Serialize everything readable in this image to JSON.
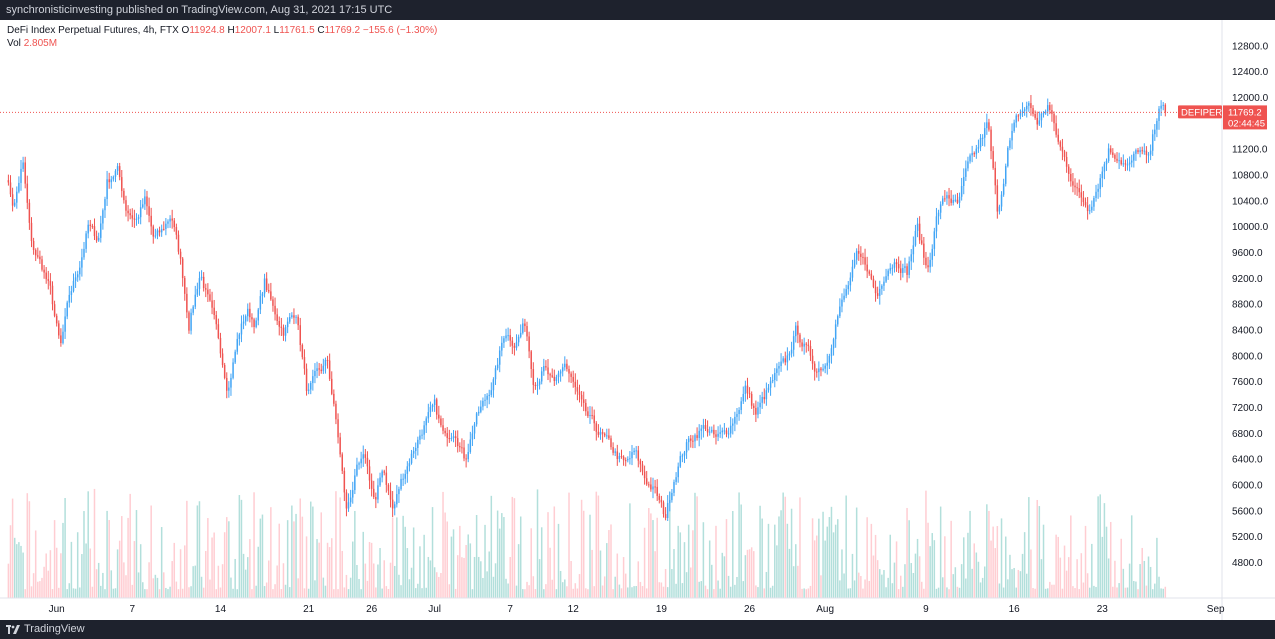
{
  "header": {
    "text": "synchronisticinvesting published on TradingView.com, Aug 31, 2021 17:15 UTC"
  },
  "footer": {
    "brand": "TradingView",
    "logo_icon": "tradingview-logo-icon"
  },
  "legend": {
    "symbol": "DeFi Index Perpetual Futures, 4h, FTX",
    "open_label": "O",
    "open": "11924.8",
    "high_label": "H",
    "high": "12007.1",
    "low_label": "L",
    "low": "11761.5",
    "close_label": "C",
    "close": "11769.2",
    "change": "−155.6 (−1.30%)",
    "vol_label": "Vol",
    "vol": "2.805M"
  },
  "price_tag": {
    "ticker": "DEFIPERP",
    "price": "11769.2",
    "countdown": "02:44:45"
  },
  "colors": {
    "up": "#42a5f5",
    "down": "#ef5350",
    "up_volume": "#b2dfdb",
    "down_volume": "#ffcdd2",
    "price_line": "#ef5350"
  },
  "chart_data": {
    "type": "candlestick",
    "y_ticks": [
      "12800.0",
      "12400.0",
      "12000.0",
      "11600.0",
      "11200.0",
      "10800.0",
      "10400.0",
      "10000.0",
      "9600.0",
      "9200.0",
      "8800.0",
      "8400.0",
      "8000.0",
      "7600.0",
      "7200.0",
      "6800.0",
      "6400.0",
      "6000.0",
      "5600.0",
      "5200.0",
      "4800.0"
    ],
    "y_tick_values": [
      12800,
      12400,
      12000,
      11600,
      11200,
      10800,
      10400,
      10000,
      9600,
      9200,
      8800,
      8400,
      8000,
      7600,
      7200,
      6800,
      6400,
      6000,
      5600,
      5200,
      4800
    ],
    "ylim": [
      4250,
      13200
    ],
    "x_ticks": [
      {
        "label": "Jun",
        "day": 31
      },
      {
        "label": "7",
        "day": 37
      },
      {
        "label": "14",
        "day": 44
      },
      {
        "label": "21",
        "day": 51
      },
      {
        "label": "26",
        "day": 56
      },
      {
        "label": "Jul",
        "day": 61
      },
      {
        "label": "7",
        "day": 67
      },
      {
        "label": "12",
        "day": 72
      },
      {
        "label": "19",
        "day": 79
      },
      {
        "label": "26",
        "day": 86
      },
      {
        "label": "Aug",
        "day": 92
      },
      {
        "label": "9",
        "day": 100
      },
      {
        "label": "16",
        "day": 107
      },
      {
        "label": "23",
        "day": 114
      },
      {
        "label": "Sep",
        "day": 123
      }
    ],
    "xlim": [
      26.5,
      123.5
    ],
    "path_points": [
      [
        27.0,
        10800
      ],
      [
        27.6,
        10300
      ],
      [
        28.3,
        11000
      ],
      [
        29.0,
        9700
      ],
      [
        29.8,
        9400
      ],
      [
        30.5,
        9000
      ],
      [
        31.3,
        8100
      ],
      [
        32.0,
        8900
      ],
      [
        32.8,
        9400
      ],
      [
        33.5,
        10000
      ],
      [
        34.3,
        9800
      ],
      [
        35.0,
        10700
      ],
      [
        35.8,
        10900
      ],
      [
        36.5,
        10300
      ],
      [
        37.3,
        10100
      ],
      [
        38.0,
        10400
      ],
      [
        38.7,
        9800
      ],
      [
        39.3,
        9900
      ],
      [
        40.1,
        10200
      ],
      [
        40.9,
        9400
      ],
      [
        41.5,
        8500
      ],
      [
        42.4,
        9300
      ],
      [
        43.1,
        8800
      ],
      [
        43.9,
        8200
      ],
      [
        44.6,
        7500
      ],
      [
        45.4,
        8300
      ],
      [
        46.1,
        8700
      ],
      [
        46.8,
        8500
      ],
      [
        47.5,
        9150
      ],
      [
        48.2,
        8700
      ],
      [
        49.0,
        8400
      ],
      [
        50.0,
        8700
      ],
      [
        50.9,
        7400
      ],
      [
        51.7,
        7700
      ],
      [
        52.5,
        7900
      ],
      [
        53.3,
        6800
      ],
      [
        54.0,
        5600
      ],
      [
        54.8,
        6200
      ],
      [
        55.5,
        6400
      ],
      [
        56.3,
        5700
      ],
      [
        56.9,
        6300
      ],
      [
        57.7,
        5600
      ],
      [
        58.4,
        6100
      ],
      [
        59.2,
        6500
      ],
      [
        60.1,
        6900
      ],
      [
        61.0,
        7200
      ],
      [
        61.8,
        6700
      ],
      [
        62.6,
        6900
      ],
      [
        63.4,
        6400
      ],
      [
        64.2,
        7000
      ],
      [
        65.0,
        7300
      ],
      [
        65.8,
        7700
      ],
      [
        66.6,
        8400
      ],
      [
        67.4,
        8200
      ],
      [
        68.2,
        8500
      ],
      [
        68.9,
        7600
      ],
      [
        69.7,
        7800
      ],
      [
        70.5,
        7500
      ],
      [
        71.3,
        7900
      ],
      [
        72.1,
        7500
      ],
      [
        72.9,
        7100
      ],
      [
        73.7,
        6900
      ],
      [
        74.5,
        6700
      ],
      [
        75.3,
        6500
      ],
      [
        76.1,
        6300
      ],
      [
        76.9,
        6500
      ],
      [
        77.7,
        6100
      ],
      [
        78.5,
        5900
      ],
      [
        79.3,
        5500
      ],
      [
        80.1,
        6200
      ],
      [
        80.9,
        6600
      ],
      [
        81.7,
        6800
      ],
      [
        82.5,
        6900
      ],
      [
        83.3,
        6700
      ],
      [
        84.1,
        6800
      ],
      [
        84.9,
        7100
      ],
      [
        85.7,
        7500
      ],
      [
        86.5,
        7100
      ],
      [
        87.3,
        7400
      ],
      [
        88.1,
        7700
      ],
      [
        88.9,
        7900
      ],
      [
        89.7,
        8400
      ],
      [
        90.5,
        8100
      ],
      [
        91.3,
        7800
      ],
      [
        92.1,
        7900
      ],
      [
        92.9,
        8600
      ],
      [
        93.7,
        9000
      ],
      [
        94.5,
        9500
      ],
      [
        95.3,
        9400
      ],
      [
        96.1,
        8900
      ],
      [
        96.9,
        9400
      ],
      [
        97.7,
        9500
      ],
      [
        98.5,
        9300
      ],
      [
        99.3,
        10000
      ],
      [
        100.1,
        9300
      ],
      [
        100.9,
        10200
      ],
      [
        101.7,
        10500
      ],
      [
        102.5,
        10300
      ],
      [
        103.3,
        10900
      ],
      [
        104.1,
        11200
      ],
      [
        104.9,
        11600
      ],
      [
        105.7,
        10200
      ],
      [
        106.5,
        11200
      ],
      [
        107.3,
        11700
      ],
      [
        108.1,
        11900
      ],
      [
        108.9,
        11600
      ],
      [
        109.7,
        11900
      ],
      [
        110.5,
        11300
      ],
      [
        111.3,
        10900
      ],
      [
        112.1,
        10500
      ],
      [
        112.9,
        10300
      ],
      [
        113.7,
        10700
      ],
      [
        114.5,
        11200
      ],
      [
        115.3,
        11100
      ],
      [
        116.1,
        10900
      ],
      [
        116.9,
        11200
      ],
      [
        117.7,
        11000
      ],
      [
        118.5,
        11900
      ],
      [
        119.0,
        11769
      ]
    ],
    "candles_per_day": 6,
    "volume_ylim": [
      0,
      5
    ],
    "last_price": 11769.2
  }
}
